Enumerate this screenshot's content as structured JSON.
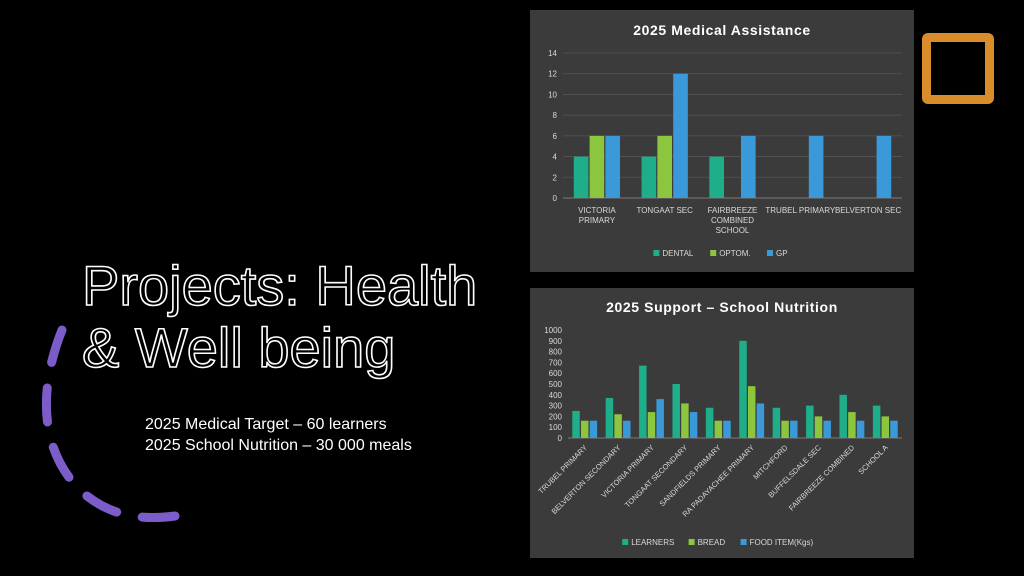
{
  "slide": {
    "title": "Projects: Health & Well being",
    "subtitle_lines": [
      "2025 Medical Target – 60 learners",
      "2025 School Nutrition – 30 000 meals"
    ]
  },
  "colors": {
    "background": "#000000",
    "panel": "#3b3b3b",
    "accent_orange": "#d98c2a",
    "accent_purple": "#7b5cc9"
  },
  "chart_data": [
    {
      "id": "medical",
      "type": "bar",
      "title": "2025 Medical Assistance",
      "categories": [
        [
          "VICTORIA",
          "PRIMARY"
        ],
        [
          "TONGAAT SEC"
        ],
        [
          "FAIRBREEZE",
          "COMBINED",
          "SCHOOL"
        ],
        [
          "TRUBEL PRIMARY"
        ],
        [
          "BELVERTON SEC"
        ]
      ],
      "series": [
        {
          "name": "DENTAL",
          "color": "#1fae8a",
          "values": [
            4,
            4,
            4,
            0,
            0
          ]
        },
        {
          "name": "OPTOM.",
          "color": "#8cc63f",
          "values": [
            6,
            6,
            0,
            0,
            0
          ]
        },
        {
          "name": "GP",
          "color": "#3a9ad9",
          "values": [
            6,
            12,
            6,
            6,
            6
          ]
        }
      ],
      "ylim": [
        0,
        14
      ],
      "yticks": [
        0,
        2,
        4,
        6,
        8,
        10,
        12,
        14
      ],
      "legend": "bottom",
      "grid": true
    },
    {
      "id": "nutrition",
      "type": "bar",
      "title": "2025 Support – School Nutrition",
      "categories": [
        "TRUBEL PRIMARY",
        "BELVERTON SECONDARY",
        "VICTORIA PRIMARY",
        "TONGAAT SECONDARY",
        "SANDFIELDS PRIMARY",
        "RA PADAYACHEE PRIMARY",
        "MITCHFORD",
        "BUFFELSDALE SEC",
        "FAIRBREEZE COMBINED",
        "SCHOOL A"
      ],
      "series": [
        {
          "name": "LEARNERS",
          "color": "#1fae8a",
          "values": [
            250,
            370,
            670,
            500,
            280,
            900,
            280,
            300,
            400,
            300
          ]
        },
        {
          "name": "BREAD",
          "color": "#8cc63f",
          "values": [
            160,
            220,
            240,
            320,
            160,
            480,
            160,
            200,
            240,
            200
          ]
        },
        {
          "name": "FOOD ITEM(Kgs)",
          "color": "#3a9ad9",
          "values": [
            160,
            160,
            360,
            240,
            160,
            320,
            160,
            160,
            160,
            160
          ]
        }
      ],
      "ylim": [
        0,
        1000
      ],
      "yticks": [
        0,
        100,
        200,
        300,
        400,
        500,
        600,
        700,
        800,
        900,
        1000
      ],
      "legend": "bottom",
      "grid": false
    }
  ]
}
